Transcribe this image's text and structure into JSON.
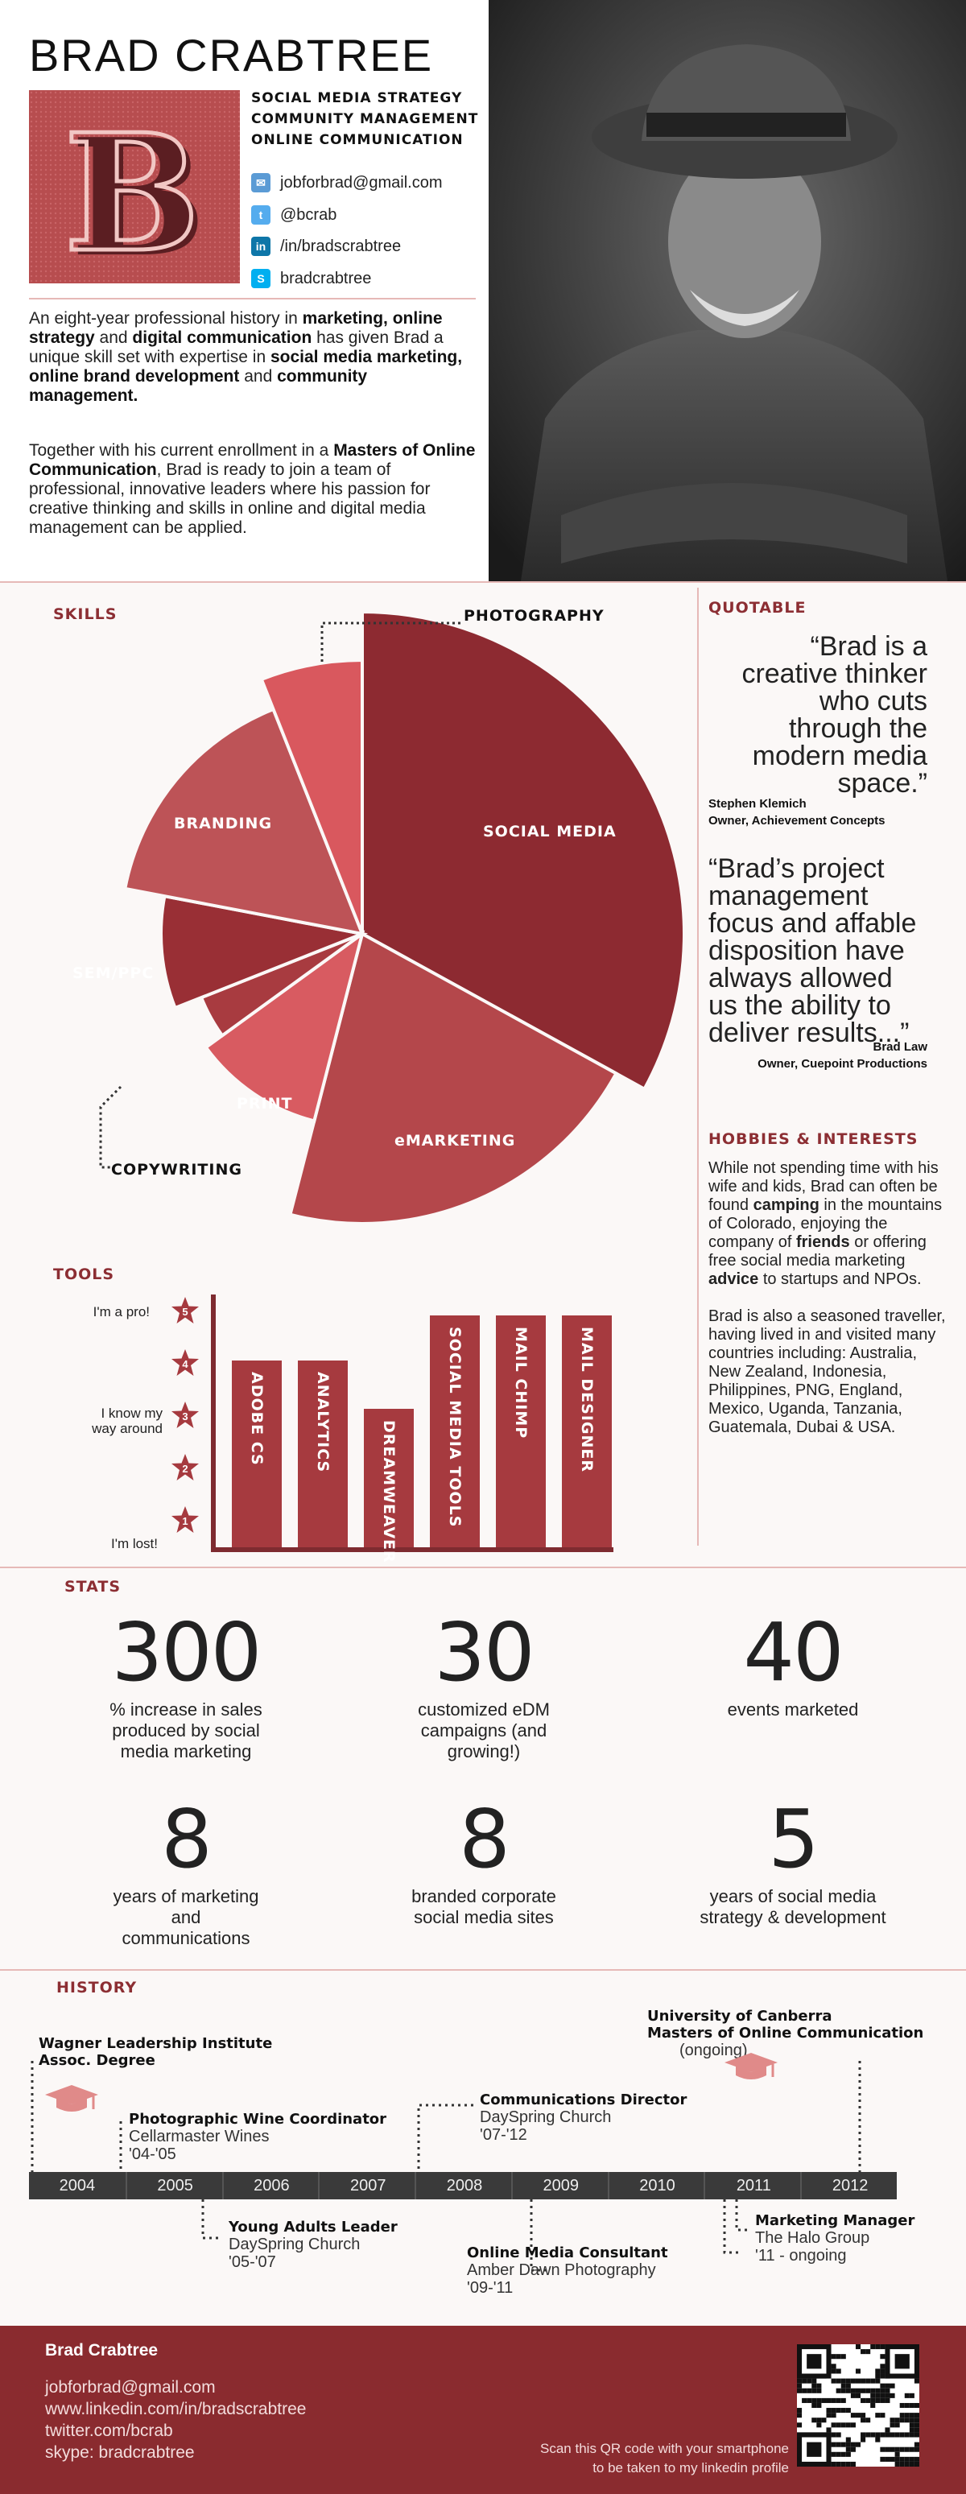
{
  "header": {
    "name": "BRAD CRABTREE",
    "roles": [
      "SOCIAL MEDIA STRATEGY",
      "COMMUNITY MANAGEMENT",
      "ONLINE COMMUNICATION"
    ],
    "monogram_letter": "B",
    "contacts": [
      {
        "icon": "email-icon",
        "text": "jobforbrad@gmail.com"
      },
      {
        "icon": "twitter-icon",
        "text": "@bcrab"
      },
      {
        "icon": "linkedin-icon",
        "text": "/in/bradscrabtree"
      },
      {
        "icon": "skype-icon",
        "text": "bradcrabtree"
      }
    ]
  },
  "intro": {
    "p1": [
      {
        "t": "An eight-year professional history in ",
        "b": false
      },
      {
        "t": "marketing, online strategy",
        "b": true
      },
      {
        "t": " and ",
        "b": false
      },
      {
        "t": "digital communication",
        "b": true
      },
      {
        "t": " has given Brad a unique skill set with expertise in ",
        "b": false
      },
      {
        "t": "social media marketing, online brand development",
        "b": true
      },
      {
        "t": " and ",
        "b": false
      },
      {
        "t": "community management.",
        "b": true
      }
    ],
    "p2": [
      {
        "t": "Together with his current enrollment in a ",
        "b": false
      },
      {
        "t": "Masters of Online Communication",
        "b": true
      },
      {
        "t": ", Brad is ready to join a team of professional, innovative leaders where his passion for creative thinking and skills in online and digital media management can be applied.",
        "b": false
      }
    ]
  },
  "skills": {
    "title": "SKILLS",
    "labels": {
      "social_media": "SOCIAL MEDIA",
      "emarketing": "eMARKETING",
      "print": "PRINT",
      "copywriting": "COPYWRITING",
      "sem": "SEM/PPC",
      "branding": "BRANDING",
      "photography": "PHOTOGRAPHY"
    }
  },
  "chart_data": {
    "type": "pie",
    "categories": [
      "SOCIAL MEDIA",
      "eMARKETING",
      "PRINT",
      "COPYWRITING",
      "SEM/PPC",
      "BRANDING",
      "PHOTOGRAPHY"
    ],
    "values": [
      33,
      21,
      11,
      4,
      9,
      16,
      6
    ],
    "colors": [
      "#8d2a31",
      "#b4474b",
      "#d85b61",
      "#a83b40",
      "#992f35",
      "#bd5357",
      "#d9585e"
    ]
  },
  "quotable": {
    "title": "QUOTABLE",
    "q1": [
      "“Brad is a",
      "creative thinker",
      "who cuts",
      "through the",
      "modern media",
      "space.”"
    ],
    "q1_author": "Stephen Klemich",
    "q1_role": "Owner, Achievement Concepts",
    "q2": [
      "“Brad’s project",
      "management",
      "focus and affable",
      "disposition have",
      "always allowed",
      "us the ability to",
      "deliver results...”"
    ],
    "q2_author": "Brad Law",
    "q2_role": "Owner, Cuepoint Productions"
  },
  "hobbies": {
    "title": "HOBBIES & INTERESTS",
    "p1": [
      {
        "t": "While not spending time with his wife and kids, Brad can often be found ",
        "b": false
      },
      {
        "t": "camping",
        "b": true
      },
      {
        "t": " in the mountains of Colorado, enjoying the company of ",
        "b": false
      },
      {
        "t": "friends",
        "b": true
      },
      {
        "t": " or offering free social media marketing ",
        "b": false
      },
      {
        "t": "advice",
        "b": true
      },
      {
        "t": " to startups and NPOs.",
        "b": false
      }
    ],
    "p2": "Brad is also a seasoned traveller, having lived in and visited many countries including: Australia, New Zealand, Indonesia, Philippines, PNG, England, Mexico, Uganda, Tanzania, Guatemala, Dubai & USA."
  },
  "tools": {
    "title": "TOOLS",
    "levels": [
      {
        "n": "5",
        "label": "I'm a pro!"
      },
      {
        "n": "4",
        "label": ""
      },
      {
        "n": "3",
        "label": "I know my way around"
      },
      {
        "n": "2",
        "label": ""
      },
      {
        "n": "1",
        "label": "I'm lost!"
      }
    ],
    "bars": [
      {
        "name": "ADOBE CS",
        "level": 4
      },
      {
        "name": "ANALYTICS",
        "level": 4
      },
      {
        "name": "DREAMWEAVER",
        "level": 3
      },
      {
        "name": "SOCIAL MEDIA TOOLS",
        "level": 5
      },
      {
        "name": "MAIL CHIMP",
        "level": 5
      },
      {
        "name": "MAIL DESIGNER",
        "level": 5
      }
    ]
  },
  "stats": {
    "title": "STATS",
    "items": [
      {
        "num": "300",
        "cap": "% increase in sales produced by social media marketing"
      },
      {
        "num": "30",
        "cap": "customized eDM campaigns (and growing!)"
      },
      {
        "num": "40",
        "cap": "events marketed"
      },
      {
        "num": "8",
        "cap": "years of marketing and communications"
      },
      {
        "num": "8",
        "cap": "branded corporate social media sites"
      },
      {
        "num": "5",
        "cap": "years of social media strategy & development"
      }
    ]
  },
  "history": {
    "title": "HISTORY",
    "years": [
      "2004",
      "2005",
      "2006",
      "2007",
      "2008",
      "2009",
      "2010",
      "2011",
      "2012"
    ],
    "events": {
      "wagner_title": "Wagner Leadership Institute",
      "wagner_sub": "Assoc. Degree",
      "canberra_title": "University of Canberra",
      "canberra_title2": "Masters of Online Communication",
      "canberra_sub": "(ongoing)",
      "comm_title": "Communications Director",
      "comm_sub": "DaySpring Church",
      "comm_years": "'07-'12",
      "wine_title": "Photographic Wine Coordinator",
      "wine_sub": "Cellarmaster Wines",
      "wine_years": "'04-'05",
      "youth_title": "Young Adults Leader",
      "youth_sub": "DaySpring Church",
      "youth_years": "'05-'07",
      "online_title": "Online Media Consultant",
      "online_sub": "Amber Dawn Photography",
      "online_years": "'09-'11",
      "mm_title": "Marketing Manager",
      "mm_sub": "The Halo Group",
      "mm_years": "'11 - ongoing"
    }
  },
  "footer": {
    "name": "Brad Crabtree",
    "lines": [
      "jobforbrad@gmail.com",
      "www.linkedin.com/in/bradscrabtree",
      "twitter.com/bcrab",
      "skype: bradcrabtree"
    ],
    "qr_text1": "Scan this QR code with your smartphone",
    "qr_text2": "to be taken to my linkedin profile"
  },
  "colors": {
    "accent": "#8c2e33",
    "bar": "#a63a3f",
    "footer": "#8a2b2f",
    "timeline": "#3a3a3a"
  }
}
